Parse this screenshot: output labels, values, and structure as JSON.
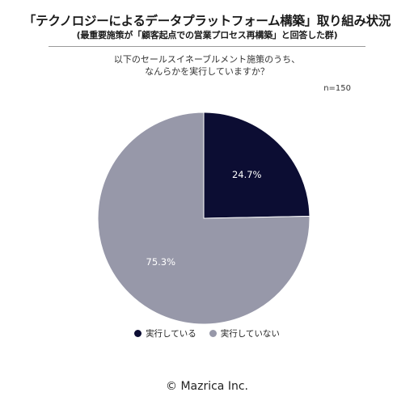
{
  "header": {
    "title": "「テクノロジーによるデータプラットフォーム構築」取り組み状況",
    "subtitle": "(最重要施策が「顧客起点での営業プロセス再構築」と回答した群)",
    "question_line1": "以下のセールスイネーブルメント施策のうち、",
    "question_line2": "なんらかを実行していますか？",
    "n_label": "n=150"
  },
  "chart_data": {
    "type": "pie",
    "slices": [
      {
        "label": "実行している",
        "value": 24.7,
        "display": "24.7%",
        "color": "#0c0d33"
      },
      {
        "label": "実行していない",
        "value": 75.3,
        "display": "75.3%",
        "color": "#9798a9"
      }
    ],
    "start_angle": "12 o'clock",
    "direction": "clockwise",
    "legend_position": "bottom"
  },
  "footer": {
    "copyright": "© Mazrica Inc."
  }
}
